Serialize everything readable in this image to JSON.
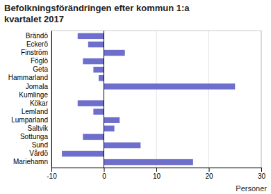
{
  "chart_data": {
    "type": "bar",
    "orientation": "horizontal",
    "title": "Befolkningsförändringen efter kommun 1:a\nkvartalet 2017",
    "categories": [
      "Brändö",
      "Eckerö",
      "Finström",
      "Föglö",
      "Geta",
      "Hammarland",
      "Jomala",
      "Kumlinge",
      "Kökar",
      "Lemland",
      "Lumparland",
      "Saltvik",
      "Sottunga",
      "Sund",
      "Vårdö",
      "Mariehamn"
    ],
    "values": [
      -5,
      -3,
      4,
      -4,
      -2,
      -1,
      25,
      0,
      -5,
      -2,
      3,
      2,
      -4,
      7,
      -8,
      17
    ],
    "color": "#6E6ECC",
    "xlabel": "Personer",
    "xlim": [
      -10,
      30
    ],
    "xticks": [
      -10,
      0,
      10,
      20,
      30
    ],
    "grid": true
  }
}
